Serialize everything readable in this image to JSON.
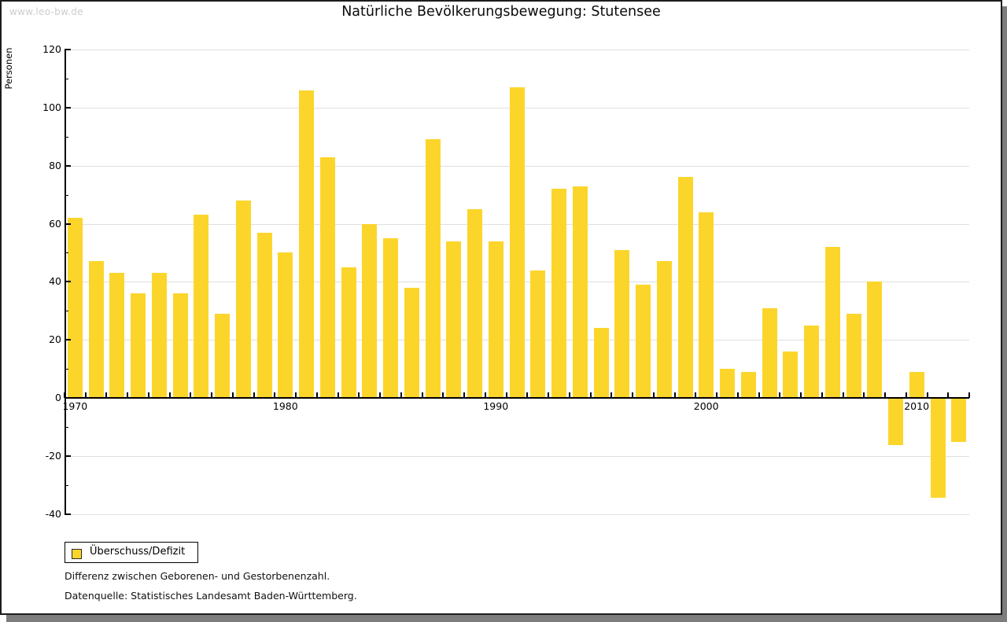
{
  "watermark": "www.leo-bw.de",
  "footnotes": [
    "Differenz zwischen Geborenen- und Gestorbenenzahl.",
    "Datenquelle: Statistisches Landesamt Baden-Württemberg."
  ],
  "colors": {
    "bar": "#fcd52b",
    "grid": "#e0e0e0",
    "axis": "#000000",
    "watermark": "#cccccc",
    "shadow": "#7d7d7d"
  },
  "chart_data": {
    "type": "bar",
    "title": "Natürliche Bevölkerungsbewegung: Stutensee",
    "ylabel": "Personen",
    "xlabel": "",
    "legend_label": "Überschuss/Defizit",
    "legend_position": "bottom-left",
    "grid": true,
    "ylim": [
      -40,
      120
    ],
    "yticks": [
      120,
      100,
      80,
      60,
      40,
      20,
      0,
      -20,
      -40
    ],
    "yticks_minor": [
      110,
      90,
      70,
      50,
      30,
      10,
      -10,
      -30
    ],
    "xtick_labels": [
      "1970",
      "1980",
      "1990",
      "2000",
      "2010"
    ],
    "categories": [
      1970,
      1971,
      1972,
      1973,
      1974,
      1975,
      1976,
      1977,
      1978,
      1979,
      1980,
      1981,
      1982,
      1983,
      1984,
      1985,
      1986,
      1987,
      1988,
      1989,
      1990,
      1991,
      1992,
      1993,
      1994,
      1995,
      1996,
      1997,
      1998,
      1999,
      2000,
      2001,
      2002,
      2003,
      2004,
      2005,
      2006,
      2007,
      2008,
      2009,
      2010,
      2011,
      2012
    ],
    "values": [
      62,
      47,
      43,
      36,
      43,
      36,
      63,
      29,
      68,
      57,
      50,
      106,
      83,
      45,
      60,
      55,
      38,
      89,
      54,
      65,
      54,
      107,
      44,
      72,
      73,
      24,
      51,
      39,
      47,
      76,
      64,
      10,
      9,
      31,
      16,
      25,
      52,
      29,
      40,
      -16,
      9,
      -34,
      -15
    ]
  }
}
